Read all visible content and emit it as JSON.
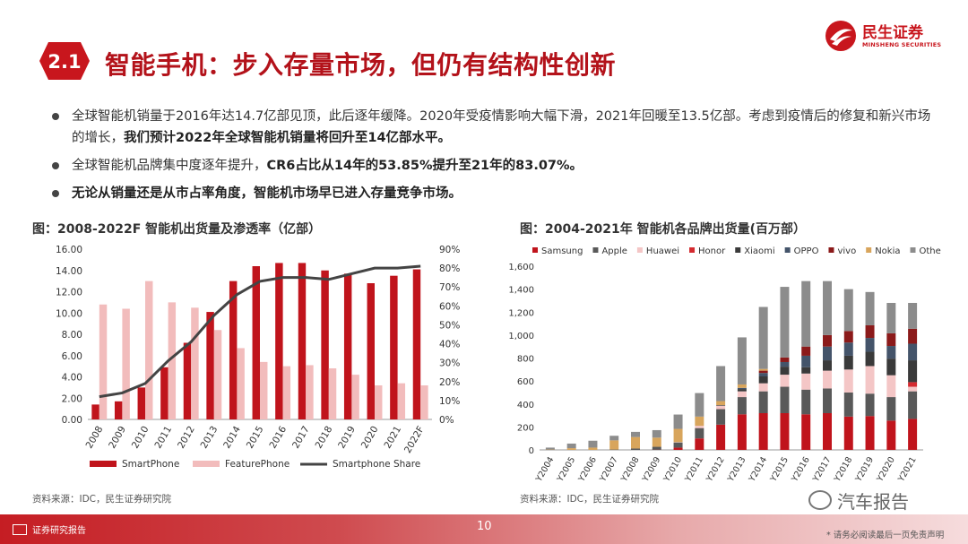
{
  "header": {
    "section_number": "2.1",
    "title": "智能手机：步入存量市场，但仍有结构性创新",
    "logo_cn": "民生证券",
    "logo_en": "MINSHENG SECURITIES",
    "brand_color": "#c8161d"
  },
  "bullets": [
    {
      "text": "全球智能机销量于2016年达14.7亿部见顶，此后逐年缓降。2020年受疫情影响大幅下滑，2021年回暖至13.5亿部。考虑到疫情后的修复和新兴市场的增长，",
      "bold": "我们预计2022年全球智能机销量将回升至14亿部水平。"
    },
    {
      "text": "全球智能机品牌集中度逐年提升，",
      "bold": "CR6占比从14年的53.85%提升至21年的83.07%。"
    },
    {
      "text": "",
      "bold": "无论从销量还是从市占率角度，智能机市场早已进入存量竞争市场。"
    }
  ],
  "chart_data": [
    {
      "type": "bar",
      "title": "图：2008-2022F 智能机出货量及渗透率（亿部）",
      "categories": [
        "2008",
        "2009",
        "2010",
        "2011",
        "2012",
        "2013",
        "2014",
        "2015",
        "2016",
        "2017",
        "2018",
        "2019",
        "2020",
        "2021",
        "2022F"
      ],
      "series": [
        {
          "name": "SmartPhone",
          "color": "#c0141c",
          "axis": "left",
          "values": [
            1.4,
            1.7,
            3.0,
            4.9,
            7.2,
            10.1,
            13.0,
            14.4,
            14.7,
            14.7,
            14.0,
            13.7,
            12.8,
            13.5,
            14.1
          ]
        },
        {
          "name": "FeaturePhone",
          "color": "#f2bcbc",
          "axis": "left",
          "values": [
            10.8,
            10.4,
            13.0,
            11.0,
            10.5,
            8.4,
            6.7,
            5.4,
            5.0,
            5.1,
            4.8,
            4.2,
            3.2,
            3.4,
            3.2
          ]
        },
        {
          "name": "Smartphone Share",
          "type": "line",
          "color": "#444444",
          "axis": "right",
          "values": [
            12,
            14,
            19,
            31,
            41,
            55,
            66,
            73,
            75,
            75,
            74,
            77,
            80,
            80,
            81
          ]
        }
      ],
      "ylim": [
        0,
        16
      ],
      "yticks": [
        "0.00",
        "2.00",
        "4.00",
        "6.00",
        "8.00",
        "10.00",
        "12.00",
        "14.00",
        "16.00"
      ],
      "y2lim": [
        0,
        90
      ],
      "y2ticks": [
        "0%",
        "10%",
        "20%",
        "30%",
        "40%",
        "50%",
        "60%",
        "70%",
        "80%",
        "90%"
      ],
      "legend_position": "bottom",
      "source": "资料来源：IDC，民生证券研究院"
    },
    {
      "type": "bar",
      "stacked": true,
      "title": "图：2004-2021年 智能机各品牌出货量(百万部）",
      "categories": [
        "Y2004",
        "Y2005",
        "Y2006",
        "Y2007",
        "Y2008",
        "Y2009",
        "Y2010",
        "Y2011",
        "Y2012",
        "Y2013",
        "Y2014",
        "Y2015",
        "Y2016",
        "Y2017",
        "Y2018",
        "Y2019",
        "Y2020",
        "Y2021"
      ],
      "series": [
        {
          "name": "Samsung",
          "color": "#c0141c",
          "values": [
            0,
            0,
            0,
            0,
            0,
            2,
            20,
            100,
            220,
            310,
            320,
            320,
            310,
            320,
            290,
            295,
            255,
            270
          ]
        },
        {
          "name": "Apple",
          "color": "#595959",
          "values": [
            0,
            0,
            0,
            3,
            12,
            25,
            45,
            90,
            135,
            150,
            190,
            230,
            215,
            215,
            210,
            195,
            205,
            240
          ]
        },
        {
          "name": "Huawei",
          "color": "#f4c6c6",
          "values": [
            0,
            0,
            0,
            0,
            0,
            0,
            3,
            20,
            30,
            50,
            70,
            105,
            140,
            155,
            200,
            240,
            190,
            40
          ]
        },
        {
          "name": "Honor",
          "color": "#d42a2f",
          "values": [
            0,
            0,
            0,
            0,
            0,
            0,
            0,
            0,
            0,
            0,
            0,
            0,
            0,
            0,
            0,
            0,
            0,
            40
          ]
        },
        {
          "name": "Xiaomi",
          "color": "#3a3a3a",
          "values": [
            0,
            0,
            0,
            0,
            0,
            0,
            0,
            0,
            5,
            20,
            60,
            70,
            55,
            90,
            120,
            125,
            145,
            190
          ]
        },
        {
          "name": "OPPO",
          "color": "#44546a",
          "values": [
            0,
            0,
            0,
            0,
            0,
            0,
            0,
            0,
            0,
            10,
            30,
            40,
            100,
            120,
            115,
            120,
            110,
            145
          ]
        },
        {
          "name": "vivo",
          "color": "#8b1a1a",
          "values": [
            0,
            0,
            0,
            0,
            0,
            0,
            0,
            0,
            0,
            0,
            20,
            40,
            80,
            100,
            100,
            110,
            110,
            130
          ]
        },
        {
          "name": "Nokia",
          "color": "#d8a55c",
          "values": [
            3,
            15,
            20,
            80,
            100,
            80,
            115,
            80,
            35,
            30,
            15,
            0,
            0,
            0,
            0,
            0,
            0,
            0
          ]
        },
        {
          "name": "Others",
          "color": "#8c8c8c",
          "values": [
            17,
            40,
            60,
            40,
            45,
            65,
            125,
            205,
            305,
            410,
            540,
            615,
            570,
            470,
            365,
            290,
            265,
            225
          ]
        }
      ],
      "ylim": [
        0,
        1600
      ],
      "yticks": [
        "0",
        "200",
        "400",
        "600",
        "800",
        "1,000",
        "1,200",
        "1,400",
        "1,600"
      ],
      "legend_position": "top",
      "source": "资料来源：IDC，民生证券研究院"
    }
  ],
  "footer": {
    "left_label": "证券研究报告",
    "page_number": "10",
    "watermark": "汽车报告",
    "disclaimer": "* 请务必阅读最后一页免责声明"
  }
}
